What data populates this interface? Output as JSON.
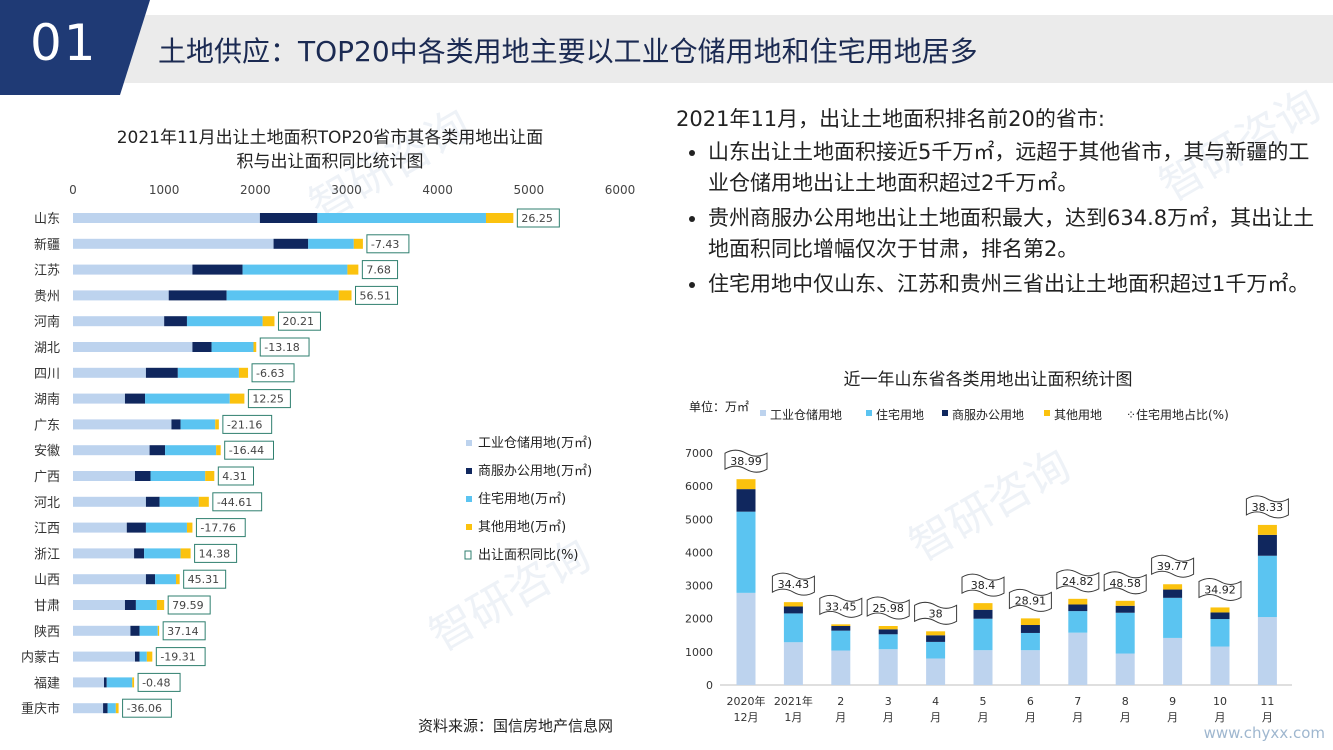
{
  "header": {
    "number": "01",
    "title": "土地供应：TOP20中各类用地主要以工业仓储用地和住宅用地居多"
  },
  "summary": {
    "lead": "2021年11月，出让土地面积排名前20的省市:",
    "bullets": [
      "山东出让土地面积接近5千万㎡，远超于其他省市，其与新疆的工业仓储用地出让土地面积超过2千万㎡。",
      "贵州商服办公用地出让土地面积最大，达到634.8万㎡，其出让土地面积同比增幅仅次于甘肃，排名第2。",
      "住宅用地中仅山东、江苏和贵州三省出让土地面积超过1千万㎡。"
    ]
  },
  "source": "资料来源：国信房地产信息网",
  "site": "www.chyxx.com",
  "watermark": "智研咨询",
  "colors": {
    "industrial": "#bdd3ee",
    "commercial": "#10275e",
    "residential": "#5bc4f1",
    "other": "#fbc20e",
    "navy": "#1f3a75",
    "label_border": "#2f7f6f"
  },
  "chart_data": [
    {
      "type": "bar",
      "orientation": "horizontal",
      "stacked": true,
      "title_line1": "2021年11月出让土地面积TOP20省市其各类用地出让面",
      "title_line2": "积与出让面积同比统计图",
      "xlim": [
        0,
        6000
      ],
      "xticks": [
        "0",
        "1000",
        "2000",
        "3000",
        "4000",
        "5000",
        "6000"
      ],
      "xtick_values": [
        0,
        1000,
        2000,
        3000,
        4000,
        5000,
        6000
      ],
      "categories": [
        "山东",
        "新疆",
        "江苏",
        "贵州",
        "河南",
        "湖北",
        "四川",
        "湖南",
        "广东",
        "安徽",
        "广西",
        "河北",
        "江西",
        "浙江",
        "山西",
        "甘肃",
        "陕西",
        "内蒙古",
        "福建",
        "重庆市"
      ],
      "series": [
        {
          "name": "工业仓储用地(万㎡)",
          "values": [
            2050,
            2200,
            1310,
            1050,
            1000,
            1310,
            800,
            570,
            1080,
            840,
            680,
            800,
            590,
            670,
            800,
            570,
            630,
            680,
            340,
            330
          ]
        },
        {
          "name": "商服办公用地(万㎡)",
          "values": [
            630,
            380,
            550,
            635,
            250,
            210,
            350,
            220,
            100,
            170,
            170,
            150,
            210,
            110,
            100,
            120,
            100,
            50,
            30,
            50
          ]
        },
        {
          "name": "住宅用地(万㎡)",
          "values": [
            1850,
            500,
            1150,
            1230,
            830,
            460,
            670,
            930,
            380,
            560,
            600,
            430,
            450,
            400,
            230,
            230,
            200,
            80,
            280,
            90
          ]
        },
        {
          "name": "其他用地(万㎡)",
          "values": [
            300,
            100,
            120,
            140,
            130,
            30,
            100,
            160,
            40,
            50,
            100,
            110,
            60,
            110,
            40,
            80,
            15,
            60,
            20,
            30
          ]
        }
      ],
      "yoy_name": "出让面积同比(%)",
      "yoy": [
        "26.25",
        "-7.43",
        "7.68",
        "56.51",
        "20.21",
        "-13.18",
        "-6.63",
        "12.25",
        "-21.16",
        "-16.44",
        "4.31",
        "-44.61",
        "-17.76",
        "14.38",
        "45.31",
        "79.59",
        "37.14",
        "-19.31",
        "-0.48",
        "-36.06"
      ],
      "legend": [
        "工业仓储用地(万㎡)",
        "商服办公用地(万㎡)",
        "住宅用地(万㎡)",
        "其他用地(万㎡)",
        "出让面积同比(%)"
      ]
    },
    {
      "type": "bar",
      "orientation": "vertical",
      "stacked": true,
      "title": "近一年山东省各类用地出让面积统计图",
      "unit": "单位：万㎡",
      "ylim": [
        0,
        7000
      ],
      "yticks": [
        "0",
        "1000",
        "2000",
        "3000",
        "4000",
        "5000",
        "6000",
        "7000"
      ],
      "ytick_values": [
        0,
        1000,
        2000,
        3000,
        4000,
        5000,
        6000,
        7000
      ],
      "categories": [
        [
          "2020年",
          "12月"
        ],
        [
          "2021年",
          "1月"
        ],
        [
          "2",
          "月"
        ],
        [
          "3",
          "月"
        ],
        [
          "4",
          "月"
        ],
        [
          "5",
          "月"
        ],
        [
          "6",
          "月"
        ],
        [
          "7",
          "月"
        ],
        [
          "8",
          "月"
        ],
        [
          "9",
          "月"
        ],
        [
          "10",
          "月"
        ],
        [
          "11",
          "月"
        ]
      ],
      "series": [
        {
          "name": "工业仓储用地",
          "values": [
            2780,
            1290,
            1040,
            1080,
            800,
            1050,
            1050,
            1580,
            950,
            1420,
            1160,
            2050
          ]
        },
        {
          "name": "住宅用地",
          "values": [
            2450,
            870,
            600,
            450,
            500,
            950,
            520,
            650,
            1230,
            1210,
            830,
            1850
          ]
        },
        {
          "name": "商服办公用地",
          "values": [
            680,
            210,
            140,
            150,
            200,
            270,
            240,
            200,
            210,
            250,
            200,
            630
          ]
        },
        {
          "name": "其他用地",
          "values": [
            300,
            130,
            50,
            100,
            120,
            200,
            200,
            170,
            150,
            160,
            150,
            300
          ]
        }
      ],
      "share_name": "住宅用地占比(%)",
      "share": [
        "38.99",
        "34.43",
        "33.45",
        "25.98",
        "38",
        "38.4",
        "28.91",
        "24.82",
        "48.58",
        "39.77",
        "34.92",
        "38.33"
      ],
      "legend": [
        "工业仓储用地",
        "住宅用地",
        "商服办公用地",
        "其他用地",
        "住宅用地占比(%)"
      ]
    }
  ]
}
